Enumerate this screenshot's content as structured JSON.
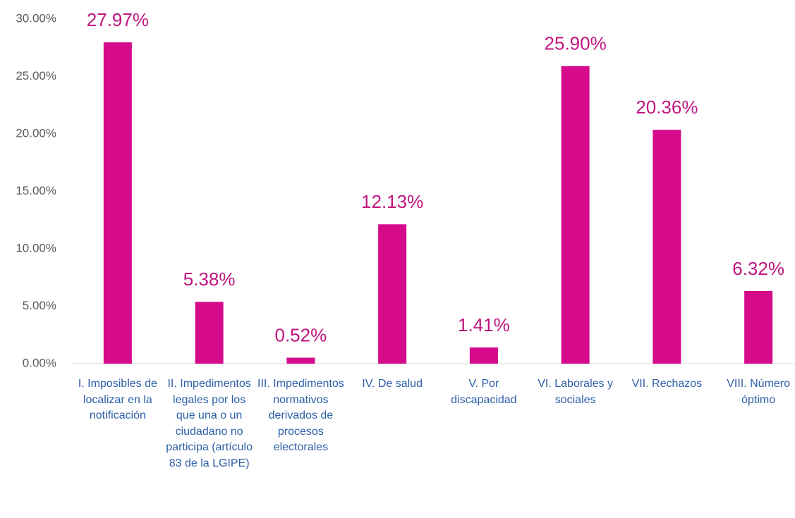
{
  "chart_data": {
    "type": "bar",
    "categories": [
      "I. Imposibles de localizar en la notificación",
      "II. Impedimentos legales por los que una o un ciudadano no participa (artículo 83 de la LGIPE)",
      "III. Impedimentos normativos derivados de procesos electorales",
      "IV. De salud",
      "V. Por discapacidad",
      "VI. Laborales y sociales",
      "VII. Rechazos",
      "VIII. Número óptimo"
    ],
    "values": [
      27.97,
      5.38,
      0.52,
      12.13,
      1.41,
      25.9,
      20.36,
      6.32
    ],
    "value_labels": [
      "27.97%",
      "5.38%",
      "0.52%",
      "12.13%",
      "1.41%",
      "25.90%",
      "20.36%",
      "6.32%"
    ],
    "color": "#d50b8b",
    "ylim": [
      0,
      30
    ],
    "yticks": [
      {
        "value": 0,
        "label": "0.00%"
      },
      {
        "value": 5,
        "label": "5.00%"
      },
      {
        "value": 10,
        "label": "10.00%"
      },
      {
        "value": 15,
        "label": "15.00%"
      },
      {
        "value": 20,
        "label": "20.00%"
      },
      {
        "value": 25,
        "label": "25.00%"
      },
      {
        "value": 30,
        "label": "30.00%"
      }
    ],
    "grid": false
  }
}
